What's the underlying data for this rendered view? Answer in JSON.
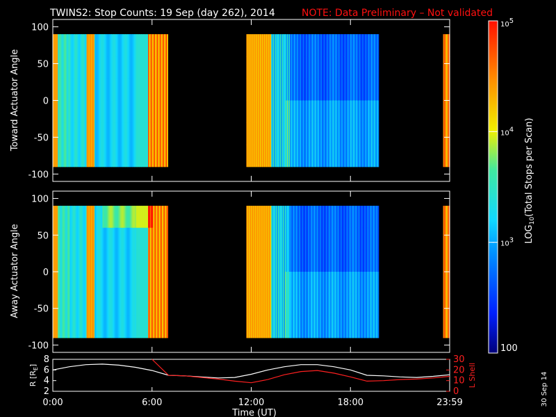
{
  "header": {
    "title": "TWINS2: Stop Counts: 19 Sep (day 262), 2014",
    "note": "NOTE: Data Preliminary – Not validated",
    "note_color": "#ff1010"
  },
  "footer": {
    "xlabel": "Time (UT)",
    "date_stamp": "30 Sep 14"
  },
  "chart_data": [
    {
      "type": "heatmap",
      "ylabel": "Toward Actuator Angle",
      "ylim": [
        -110,
        110
      ],
      "yticks": [
        100,
        50,
        0,
        -50,
        -100
      ],
      "xlim": [
        0,
        24
      ],
      "xticks": [
        "0:00",
        "6:00",
        "12:00",
        "18:00",
        "23:59"
      ],
      "xtick_hours": [
        0,
        6,
        12,
        18,
        24
      ],
      "data_angle_range": [
        -90,
        90
      ],
      "coverage_hours": [
        [
          0,
          6.95
        ],
        [
          11.7,
          19.7
        ],
        [
          23.6,
          24
        ]
      ]
    },
    {
      "type": "heatmap",
      "ylabel": "Away Actuator Angle",
      "ylim": [
        -110,
        110
      ],
      "yticks": [
        100,
        50,
        0,
        -50,
        -100
      ],
      "xlim": [
        0,
        24
      ],
      "xticks": [
        "0:00",
        "6:00",
        "12:00",
        "18:00",
        "23:59"
      ],
      "xtick_hours": [
        0,
        6,
        12,
        18,
        24
      ],
      "data_angle_range": [
        -90,
        90
      ],
      "coverage_hours": [
        [
          0,
          6.95
        ],
        [
          11.7,
          19.7
        ],
        [
          23.6,
          24
        ]
      ]
    },
    {
      "type": "line",
      "ylabel_left": "R [R",
      "ylabel_left_sub": "E",
      "ylabel_left_close": "]",
      "ylabel_right": "L Shell",
      "ylim_left": [
        2,
        8
      ],
      "yticks_left": [
        "8",
        "6",
        "4",
        "2"
      ],
      "ylim_right": [
        0,
        30
      ],
      "yticks_right": [
        "30",
        "20",
        "10",
        "0"
      ],
      "right_color": "#ff2020",
      "x_hours": [
        0,
        1,
        2,
        3,
        4,
        5,
        6,
        7,
        8,
        9,
        10,
        11,
        12,
        13,
        14,
        15,
        16,
        17,
        18,
        19,
        20,
        21,
        22,
        23,
        24
      ],
      "series": [
        {
          "axis": "left",
          "color": "#ffffff",
          "values": [
            6.0,
            6.6,
            7.0,
            7.1,
            6.9,
            6.5,
            5.9,
            5.0,
            4.9,
            4.7,
            4.5,
            4.6,
            5.2,
            6.0,
            6.6,
            7.0,
            7.0,
            6.6,
            6.0,
            5.0,
            4.9,
            4.7,
            4.6,
            4.8,
            5.1
          ]
        },
        {
          "axis": "right",
          "color": "#ff2020",
          "values": [
            30,
            null,
            null,
            null,
            null,
            null,
            30,
            15,
            14.5,
            13,
            11.5,
            9.5,
            8,
            11,
            15.5,
            18.5,
            19.5,
            17,
            13.5,
            9.5,
            10,
            11,
            11.5,
            12.5,
            14
          ]
        }
      ]
    }
  ],
  "colorbar": {
    "label_prefix": "LOG",
    "label_sub": "10",
    "label_suffix": "(Total Stops per Scan)",
    "ticks": [
      {
        "base": "10",
        "exp": "5"
      },
      {
        "base": "10",
        "exp": "4"
      },
      {
        "base": "10",
        "exp": "3"
      },
      {
        "base": "100",
        "exp": ""
      }
    ],
    "log_values": [
      5,
      4,
      3,
      2
    ],
    "log_range": [
      2,
      5
    ]
  }
}
